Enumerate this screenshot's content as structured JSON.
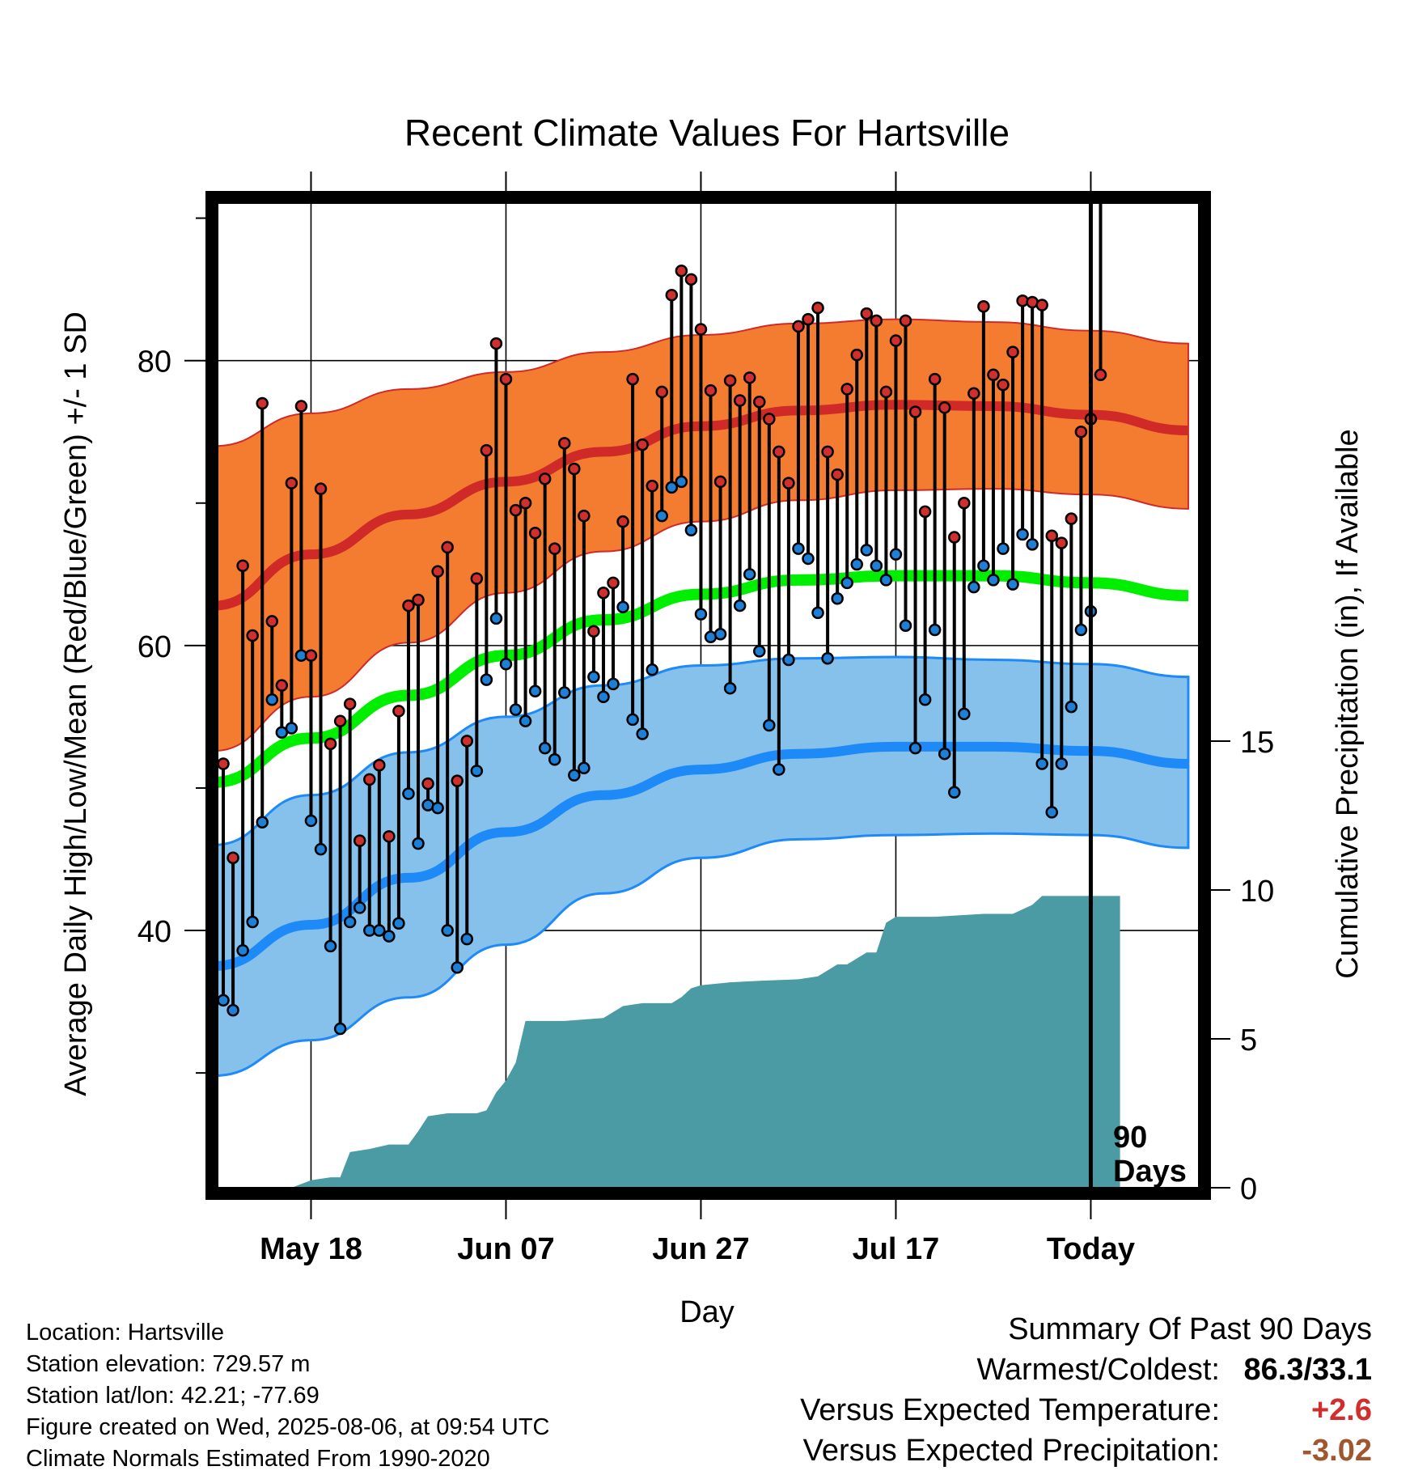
{
  "chart_data": {
    "type": "line",
    "title": "Recent Climate Values For Hartsville",
    "xlabel": "Day",
    "ylabel": "Average Daily High/Low/Mean (Red/Blue/Green) +/- 1 SD",
    "y2label": "Cumulative Precipitation (in), If Available",
    "ylim": [
      22,
      91
    ],
    "y2lim": [
      0,
      20
    ],
    "yticks": [
      80,
      60,
      40
    ],
    "y2ticks": [
      15,
      10,
      5,
      0
    ],
    "grid": true,
    "x_tick_labels": [
      "May 18",
      "Jun 07",
      "Jun 27",
      "Jul 17",
      "Today"
    ],
    "x_tick_days": [
      10,
      30,
      50,
      70,
      90
    ],
    "today_day": 90,
    "window_label_line1": "90",
    "window_label_line2": "Days",
    "colors": {
      "high_normal": "#cf2a27",
      "high_band": "#f47c31",
      "low_normal": "#1e8af7",
      "low_band": "#85c1ea",
      "low_band_edge": "#1e8af7",
      "mean_normal": "#00ee00",
      "precip": "#4a9ba4",
      "high_dot": "#d0302d",
      "low_dot": "#1e7fd6"
    },
    "normals": {
      "days": [
        0,
        10,
        20,
        30,
        40,
        50,
        60,
        70,
        80,
        90,
        100
      ],
      "high_mean": [
        62.8,
        66.4,
        69.2,
        71.5,
        73.6,
        75.4,
        76.5,
        76.9,
        76.8,
        76.2,
        75.1
      ],
      "high_upper": [
        74.0,
        76.3,
        78.0,
        79.2,
        80.6,
        81.8,
        82.6,
        82.9,
        82.7,
        82.1,
        81.2
      ],
      "high_lower": [
        52.6,
        56.4,
        60.2,
        63.7,
        66.6,
        68.7,
        70.2,
        70.9,
        71.0,
        70.6,
        69.6
      ],
      "low_mean": [
        37.5,
        40.4,
        43.7,
        46.9,
        49.5,
        51.3,
        52.4,
        52.9,
        52.9,
        52.6,
        51.7
      ],
      "low_upper": [
        46.0,
        49.5,
        52.5,
        55.0,
        57.2,
        58.6,
        59.1,
        59.2,
        59.0,
        58.7,
        57.8
      ],
      "low_lower": [
        29.8,
        32.3,
        35.3,
        39.0,
        42.6,
        45.1,
        46.4,
        46.7,
        46.8,
        46.7,
        45.8
      ],
      "mean_normal": [
        50.4,
        53.5,
        56.5,
        59.3,
        61.8,
        63.6,
        64.6,
        64.9,
        64.9,
        64.4,
        63.5
      ]
    },
    "series": [
      {
        "name": "Daily High",
        "values": [
          51.7,
          45.1,
          65.6,
          60.7,
          77.0,
          61.7,
          57.2,
          71.4,
          76.8,
          59.3,
          71.0,
          53.1,
          54.7,
          55.9,
          46.3,
          50.6,
          51.6,
          46.6,
          55.4,
          62.8,
          63.2,
          50.3,
          65.2,
          66.9,
          50.5,
          53.3,
          64.7,
          73.7,
          81.2,
          78.7,
          69.5,
          70.0,
          67.9,
          71.7,
          66.8,
          74.2,
          72.4,
          69.1,
          61.0,
          63.7,
          64.4,
          68.7,
          78.7,
          74.1,
          71.2,
          77.8,
          84.6,
          86.3,
          85.7,
          82.2,
          77.9,
          71.5,
          78.6,
          77.2,
          78.8,
          77.1,
          75.9,
          73.6,
          71.4,
          82.4,
          82.9,
          83.7,
          73.6,
          72.0,
          78.0,
          80.4,
          83.3,
          82.8,
          77.8,
          81.4,
          82.8,
          76.4,
          69.4,
          78.7,
          76.7,
          67.6,
          70.0,
          77.7,
          83.8,
          79.0,
          78.3,
          80.6,
          84.2,
          84.1,
          83.9,
          67.7,
          67.2,
          68.9,
          75.0,
          75.9,
          79.0
        ],
        "color": "#d0302d"
      },
      {
        "name": "Daily Low",
        "values": [
          35.1,
          34.4,
          38.6,
          40.6,
          47.6,
          56.2,
          53.9,
          54.2,
          59.3,
          47.7,
          45.7,
          38.9,
          33.1,
          40.6,
          41.6,
          40.0,
          40.0,
          39.6,
          40.5,
          49.6,
          46.1,
          48.8,
          48.6,
          40.0,
          37.4,
          39.4,
          51.2,
          57.6,
          61.9,
          58.7,
          55.5,
          54.7,
          56.8,
          52.8,
          52.0,
          56.7,
          50.9,
          51.4,
          57.8,
          56.4,
          57.3,
          62.7,
          54.8,
          53.8,
          58.3,
          69.1,
          71.1,
          71.5,
          68.1,
          62.2,
          60.6,
          60.8,
          57.0,
          62.8,
          65.0,
          59.6,
          54.4,
          51.3,
          59.0,
          66.8,
          66.1,
          62.3,
          59.1,
          63.3,
          64.4,
          65.7,
          66.7,
          65.6,
          64.6,
          66.4,
          61.4,
          52.8,
          56.2,
          61.1,
          52.4,
          49.7,
          55.2,
          64.1,
          65.6,
          64.6,
          66.8,
          64.3,
          67.8,
          67.1,
          51.7,
          48.3,
          51.7,
          55.7,
          61.1,
          62.4
        ],
        "color": "#1e7fd6"
      }
    ],
    "precipitation": {
      "days": [
        0,
        8,
        10,
        12,
        13,
        14,
        16,
        18,
        20,
        21,
        22,
        24,
        27,
        28,
        29,
        30,
        31,
        32,
        36,
        40,
        42,
        44,
        47,
        48,
        49,
        50,
        53,
        56,
        60,
        62,
        63,
        64,
        65,
        67,
        68,
        69,
        70,
        74,
        79,
        82,
        84,
        85,
        86,
        90,
        93
      ],
      "values": [
        0.0,
        0.0,
        0.25,
        0.35,
        0.35,
        1.2,
        1.3,
        1.45,
        1.45,
        1.9,
        2.4,
        2.5,
        2.5,
        2.6,
        3.2,
        3.6,
        4.2,
        5.6,
        5.6,
        5.7,
        6.1,
        6.2,
        6.2,
        6.4,
        6.7,
        6.8,
        6.9,
        6.95,
        7.0,
        7.1,
        7.3,
        7.5,
        7.5,
        7.9,
        7.9,
        8.9,
        9.1,
        9.1,
        9.2,
        9.2,
        9.5,
        9.8,
        9.8,
        9.8,
        9.8
      ]
    }
  },
  "footer": {
    "line1": "Location: Hartsville",
    "line2": "Station elevation: 729.57 m",
    "line3": "Station lat/lon: 42.21; -77.69",
    "line4": "Figure created on Wed, 2025-08-06, at 09:54 UTC",
    "line5": "Climate Normals Estimated From 1990-2020"
  },
  "summary": {
    "title": "Summary Of Past 90 Days",
    "warmest_coldest_label": "Warmest/Coldest:",
    "warmest_coldest_value": "86.3/33.1",
    "temp_label": "Versus Expected Temperature:",
    "temp_value": "+2.6",
    "temp_color": "#d22e2e",
    "precip_label": "Versus Expected Precipitation:",
    "precip_value": "-3.02",
    "precip_color": "#a0572f"
  }
}
